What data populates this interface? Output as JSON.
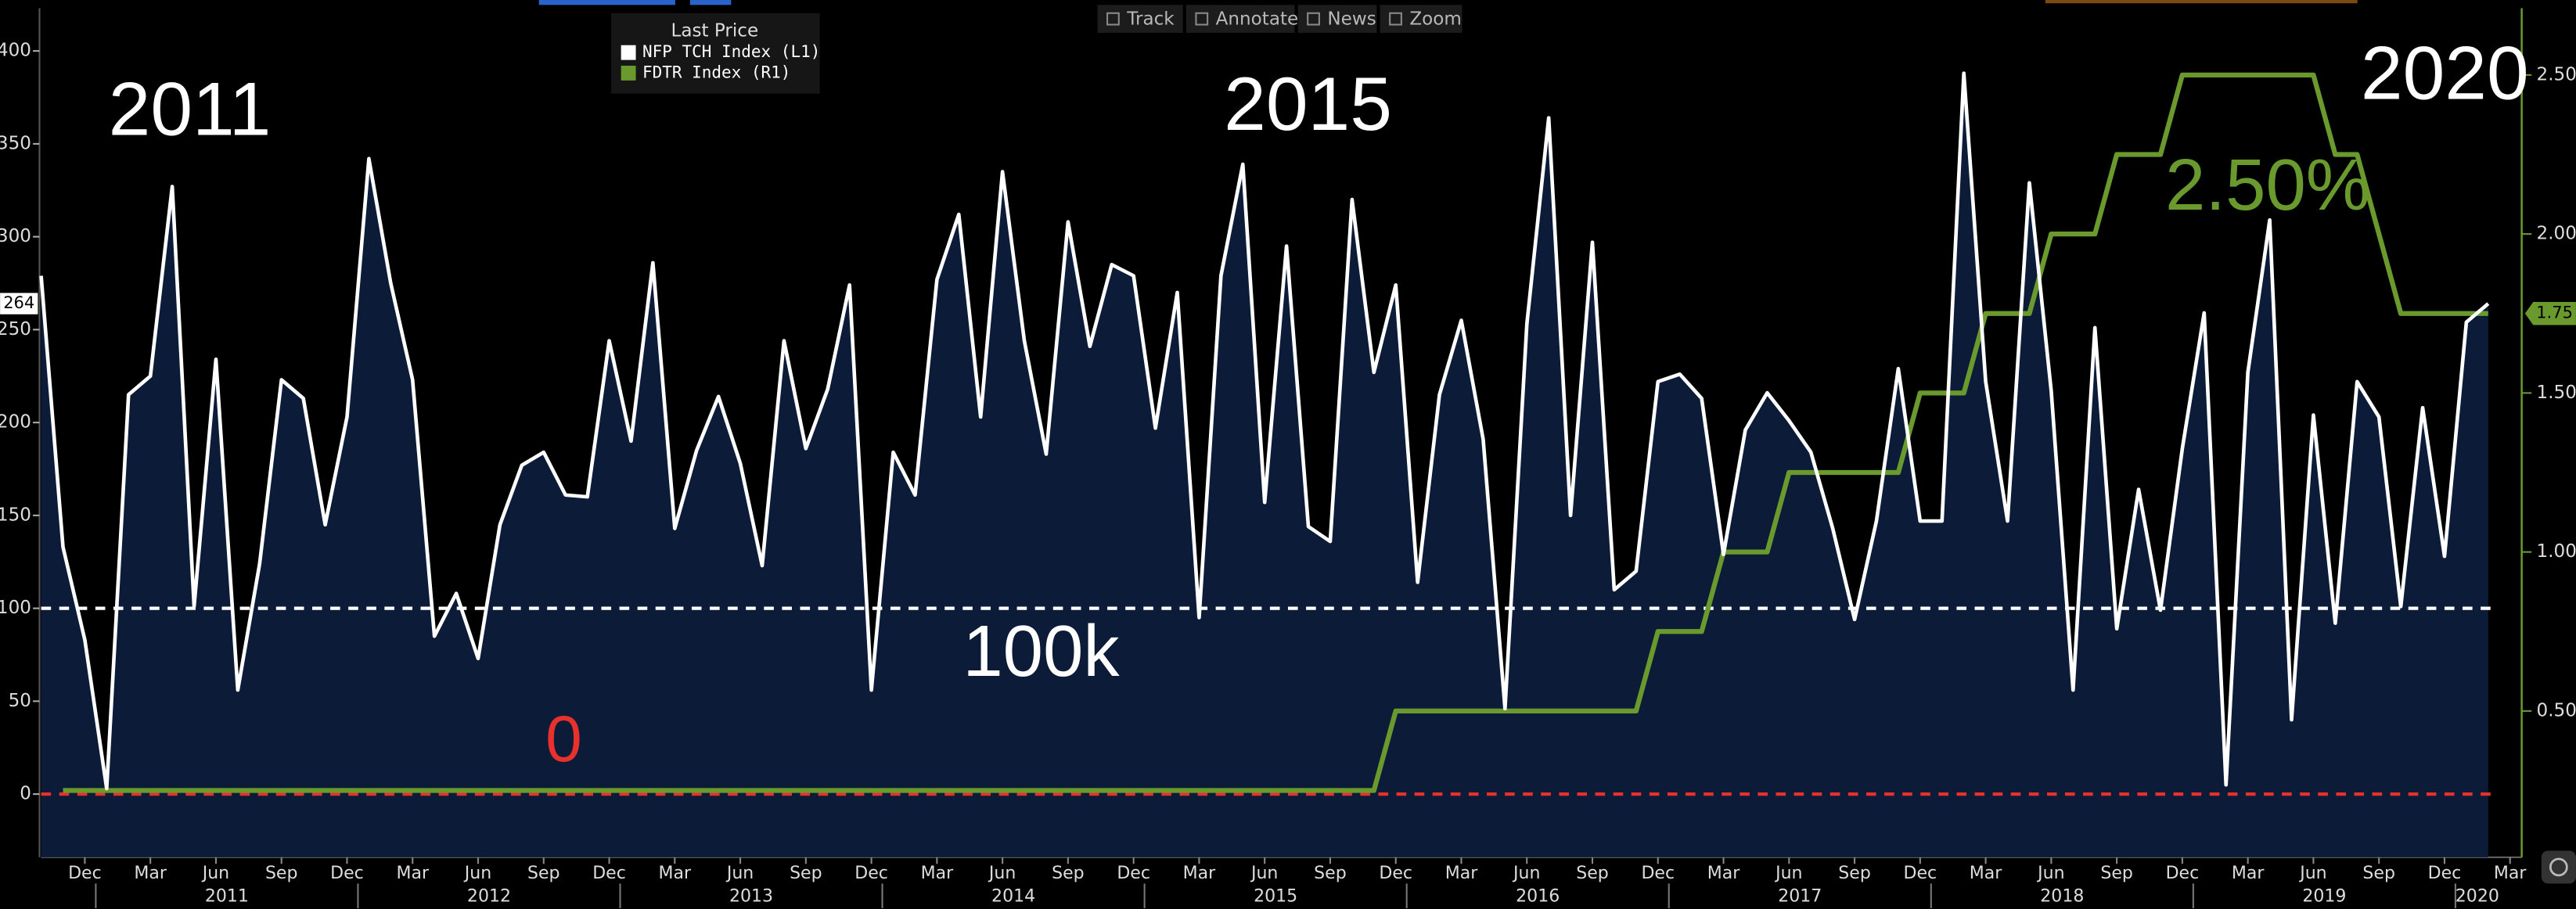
{
  "toolbar": [
    "Track",
    "Annotate",
    "News",
    "Zoom"
  ],
  "chart_data": {
    "type": "line",
    "legend_title": "Last Price",
    "categories": [
      null,
      null,
      "Dec",
      null,
      null,
      "Mar",
      null,
      null,
      "Jun",
      null,
      null,
      "Sep",
      null,
      null,
      "Dec",
      null,
      null,
      "Mar",
      null,
      null,
      "Jun",
      null,
      null,
      "Sep",
      null,
      null,
      "Dec",
      null,
      null,
      "Mar",
      null,
      null,
      "Jun",
      null,
      null,
      "Sep",
      null,
      null,
      "Dec",
      null,
      null,
      "Mar",
      null,
      null,
      "Jun",
      null,
      null,
      "Sep",
      null,
      null,
      "Dec",
      null,
      null,
      "Mar",
      null,
      null,
      "Jun",
      null,
      null,
      "Sep",
      null,
      null,
      "Dec",
      null,
      null,
      "Mar",
      null,
      null,
      "Jun",
      null,
      null,
      "Sep",
      null,
      null,
      "Dec",
      null,
      null,
      "Mar",
      null,
      null,
      "Jun",
      null,
      null,
      "Sep",
      null,
      null,
      "Dec",
      null,
      null,
      "Mar",
      null,
      null,
      "Jun",
      null,
      null,
      "Sep",
      null,
      null,
      "Dec",
      null,
      null,
      "Mar",
      null,
      null,
      "Jun",
      null,
      null,
      "Sep",
      null,
      null,
      "Dec",
      null,
      null,
      "Mar"
    ],
    "years": [
      "2011",
      "2012",
      "2013",
      "2014",
      "2015",
      "2016",
      "2017",
      "2018",
      "2019",
      "2020"
    ],
    "series": [
      {
        "name": "NFP TCH Index  (L1)",
        "color": "#ffffff",
        "area_color": "#0c1b38",
        "axis": "y",
        "values": [
          279,
          133,
          83,
          3,
          215,
          225,
          327,
          101,
          234,
          56,
          124,
          223,
          213,
          145,
          203,
          342,
          275,
          223,
          85,
          108,
          73,
          145,
          177,
          184,
          161,
          160,
          244,
          190,
          286,
          143,
          185,
          214,
          178,
          123,
          244,
          186,
          218,
          274,
          56,
          184,
          161,
          277,
          312,
          203,
          335,
          244,
          183,
          308,
          241,
          285,
          279,
          197,
          270,
          95,
          279,
          339,
          157,
          295,
          144,
          136,
          320,
          227,
          274,
          114,
          215,
          255,
          191,
          46,
          253,
          364,
          150,
          297,
          110,
          120,
          222,
          226,
          213,
          129,
          196,
          216,
          201,
          184,
          143,
          94,
          147,
          229,
          147,
          147,
          388,
          222,
          147,
          329,
          217,
          56,
          251,
          89,
          164,
          99,
          186,
          259,
          5,
          227,
          309,
          40,
          204,
          92,
          222,
          203,
          101,
          208,
          128,
          254,
          264,
          null
        ]
      },
      {
        "name": "FDTR Index  (R1)",
        "color": "#6a9a2e",
        "axis": "y2",
        "values": [
          null,
          0.25,
          0.25,
          0.25,
          0.25,
          0.25,
          0.25,
          0.25,
          0.25,
          0.25,
          0.25,
          0.25,
          0.25,
          0.25,
          0.25,
          0.25,
          0.25,
          0.25,
          0.25,
          0.25,
          0.25,
          0.25,
          0.25,
          0.25,
          0.25,
          0.25,
          0.25,
          0.25,
          0.25,
          0.25,
          0.25,
          0.25,
          0.25,
          0.25,
          0.25,
          0.25,
          0.25,
          0.25,
          0.25,
          0.25,
          0.25,
          0.25,
          0.25,
          0.25,
          0.25,
          0.25,
          0.25,
          0.25,
          0.25,
          0.25,
          0.25,
          0.25,
          0.25,
          0.25,
          0.25,
          0.25,
          0.25,
          0.25,
          0.25,
          0.25,
          0.25,
          0.25,
          0.5,
          0.5,
          0.5,
          0.5,
          0.5,
          0.5,
          0.5,
          0.5,
          0.5,
          0.5,
          0.5,
          0.5,
          0.75,
          0.75,
          0.75,
          1.0,
          1.0,
          1.0,
          1.25,
          1.25,
          1.25,
          1.25,
          1.25,
          1.25,
          1.5,
          1.5,
          1.5,
          1.75,
          1.75,
          1.75,
          2.0,
          2.0,
          2.0,
          2.25,
          2.25,
          2.25,
          2.5,
          2.5,
          2.5,
          2.5,
          2.5,
          2.5,
          2.5,
          2.25,
          2.25,
          2.0,
          1.75,
          1.75,
          1.75,
          1.75,
          1.75,
          null
        ]
      }
    ],
    "ylim": [
      -34,
      423
    ],
    "yticks": [
      0,
      50,
      100,
      150,
      200,
      250,
      300,
      350,
      400
    ],
    "y2lim": [
      0.04,
      2.71
    ],
    "y2ticks": [
      {
        "value": 0.5,
        "label": "0.50"
      },
      {
        "value": 1.0,
        "label": "1.00"
      },
      {
        "value": 1.5,
        "label": "1.50"
      },
      {
        "value": 2.0,
        "label": "2.00"
      },
      {
        "value": 2.5,
        "label": "2.50"
      }
    ],
    "hlines": [
      {
        "value": 100,
        "color": "#ffffff"
      },
      {
        "value": 0,
        "color": "#e8302c"
      }
    ],
    "annotations": [
      {
        "text": "2011",
        "color": "#ffffff"
      },
      {
        "text": "2015",
        "color": "#ffffff"
      },
      {
        "text": "2020",
        "color": "#ffffff"
      },
      {
        "text": "2.50%",
        "color": "#6a9a2e"
      },
      {
        "text": "100k",
        "color": "#ffffff"
      },
      {
        "text": "0",
        "color": "#e8302c"
      }
    ]
  }
}
